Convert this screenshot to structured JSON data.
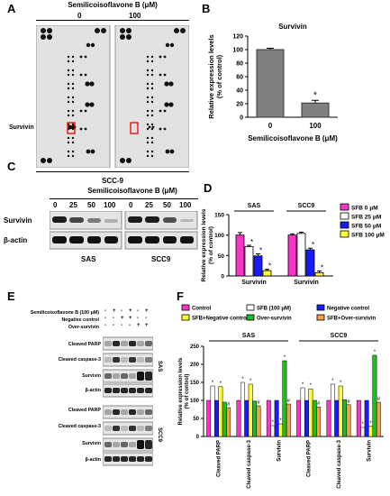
{
  "panels": {
    "a": "A",
    "b": "B",
    "c": "C",
    "d": "D",
    "e": "E",
    "f": "F"
  },
  "panel_a": {
    "header": "Semilicoisoflavone B (μM)",
    "dose_0": "0",
    "dose_100": "100",
    "highlight_label": "Survivin",
    "cell_line": "SCC-9"
  },
  "panel_c": {
    "header": "Semilicoisoflavone B (μM)",
    "doses": [
      "0",
      "25",
      "50",
      "100",
      "0",
      "25",
      "50",
      "100"
    ],
    "rows": [
      "Survivin",
      "β-actin"
    ],
    "cell_lines": [
      "SAS",
      "SCC9"
    ]
  },
  "panel_e": {
    "treatments": [
      "Semilicoisoflavone B (100 μM)",
      "Negative control",
      "Over-survivin"
    ],
    "signs": [
      [
        "-",
        "+",
        "-",
        "+",
        "-",
        "+"
      ],
      [
        "-",
        "-",
        "+",
        "+",
        "-",
        "-"
      ],
      [
        "-",
        "-",
        "-",
        "-",
        "+",
        "+"
      ]
    ],
    "rows": [
      "Cleaved PARP",
      "Cleaved caspase-3",
      "Survivin",
      "β-actin"
    ],
    "cell_lines": [
      "SAS",
      "SCC9"
    ]
  },
  "chart_data": [
    {
      "id": "B",
      "type": "bar",
      "title": "Survivin",
      "categories": [
        "0",
        "100"
      ],
      "values": [
        100,
        21
      ],
      "errors": [
        2,
        4
      ],
      "significance": [
        "",
        "*"
      ],
      "xlabel": "Semilicoisoflavone B (μM)",
      "ylabel": "Relative expression levels\n(% of control)",
      "ylim": [
        0,
        120
      ],
      "yticks": [
        "0",
        "20",
        "40",
        "60",
        "80",
        "100",
        "120"
      ],
      "bar_color": "#7f7f7f"
    },
    {
      "id": "D",
      "type": "bar",
      "groups": [
        "SAS",
        "SCC9"
      ],
      "categories": [
        "Survivin",
        "Survivin"
      ],
      "series": [
        {
          "name": "SFB 0 μM",
          "color": "#ff33cc",
          "values": [
            100,
            100
          ],
          "errors": [
            6,
            3
          ],
          "sig": [
            "",
            ""
          ]
        },
        {
          "name": "SFB 25 μM",
          "color": "#ffffff",
          "values": [
            72,
            104
          ],
          "errors": [
            3,
            3
          ],
          "sig": [
            "*",
            ""
          ]
        },
        {
          "name": "SFB 50 μM",
          "color": "#1a1aff",
          "values": [
            49,
            64
          ],
          "errors": [
            5,
            4
          ],
          "sig": [
            "*",
            "*"
          ]
        },
        {
          "name": "SFB 100 μM",
          "color": "#ffff33",
          "values": [
            13,
            8
          ],
          "errors": [
            3,
            4
          ],
          "sig": [
            "*",
            "*"
          ]
        }
      ],
      "ylabel": "Relative expression levels\n(% of control)",
      "ylim": [
        0,
        150
      ],
      "yticks": [
        "0",
        "50",
        "100",
        "150"
      ],
      "legend_position": "right"
    },
    {
      "id": "F",
      "type": "bar",
      "groups": [
        "SAS",
        "SCC9"
      ],
      "categories": [
        "Cleaved PARP",
        "Cleaved caspase-3",
        "Survivin",
        "Cleaved PARP",
        "Cleaved caspase-3",
        "Survivin"
      ],
      "series": [
        {
          "name": "Control",
          "color": "#ff33cc",
          "values": [
            100,
            100,
            100,
            100,
            100,
            100
          ],
          "sig": [
            "",
            "",
            "",
            "",
            "",
            ""
          ]
        },
        {
          "name": "SFB (100 μM)",
          "color": "#ffffff",
          "values": [
            140,
            150,
            30,
            135,
            145,
            25
          ],
          "sig": [
            "*",
            "*",
            "*",
            "*",
            "*",
            "*"
          ]
        },
        {
          "name": "Negative control",
          "color": "#1a1aff",
          "values": [
            100,
            100,
            100,
            100,
            100,
            100
          ],
          "sig": [
            "",
            "",
            "",
            "",
            "",
            ""
          ]
        },
        {
          "name": "SFB+Negative control",
          "color": "#ffff33",
          "values": [
            138,
            145,
            35,
            132,
            140,
            28
          ],
          "sig": [
            "*",
            "*",
            "*",
            "*",
            "*",
            "*"
          ]
        },
        {
          "name": "Over-survivin",
          "color": "#22bb22",
          "values": [
            95,
            98,
            210,
            100,
            102,
            225
          ],
          "sig": [
            "",
            "",
            "*",
            "",
            "",
            "*"
          ]
        },
        {
          "name": "SFB+Over-survivin",
          "color": "#f0a050",
          "values": [
            80,
            85,
            90,
            82,
            88,
            95
          ],
          "sig": [
            "#",
            "#",
            "#",
            "#",
            "#",
            "#"
          ]
        }
      ],
      "ylabel": "Relative expression levels\n(% of control)",
      "ylim": [
        0,
        250
      ],
      "yticks": [
        "0",
        "50",
        "100",
        "150",
        "200",
        "250"
      ],
      "legend_position": "top"
    }
  ]
}
